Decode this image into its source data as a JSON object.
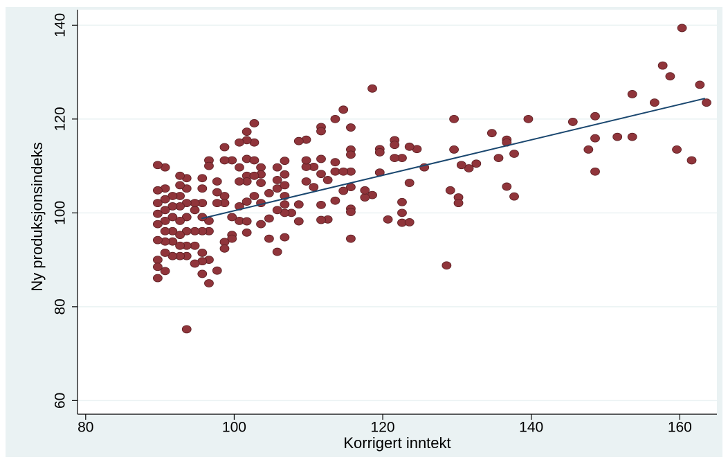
{
  "chart_data": {
    "type": "scatter",
    "x_label": "Korrigert inntekt",
    "y_label": "Ny produksjonsindeks",
    "xlim": [
      78.9,
      165
    ],
    "ylim": [
      57.1,
      143.3
    ],
    "xticks": [
      80,
      100,
      120,
      140,
      160
    ],
    "yticks": [
      60,
      80,
      100,
      120,
      140
    ],
    "grid": true,
    "series": [
      {
        "type": "scatter",
        "color": "#90353b",
        "x": [
          160.3,
          157.7,
          158.7,
          162.7,
          163.6,
          153.6,
          156.6,
          148.6,
          145.6,
          139.6,
          151.6,
          153.6,
          148.6,
          147.7,
          159.6,
          161.6,
          148.6,
          134.7,
          136.7,
          136.7,
          137.7,
          135.6,
          132.6,
          131.6,
          130.6,
          129.6,
          129.6,
          125.6,
          136.7,
          137.7,
          129.1,
          130.2,
          130.2,
          128.6,
          124.6,
          123.6,
          121.6,
          121.6,
          122.6,
          121.6,
          119.6,
          119.6,
          119.6,
          123.6,
          118.6,
          122.6,
          122.6,
          122.6,
          123.6,
          120.7,
          118.6,
          117.6,
          117.6,
          115.7,
          115.7,
          115.7,
          114.7,
          113.6,
          111.7,
          111.7,
          111.7,
          113.6,
          113.6,
          115.7,
          114.7,
          112.6,
          111.7,
          110.7,
          109.7,
          109.7,
          109.7,
          108.7,
          109.7,
          110.7,
          115.7,
          114.7,
          113.6,
          111.7,
          108.7,
          108.7,
          112.6,
          111.7,
          115.7,
          115.7,
          115.7,
          107.7,
          106.8,
          106.8,
          105.8,
          106.8,
          105.8,
          106.8,
          105.8,
          106.8,
          105.8,
          106.8,
          104.7,
          104.7,
          104.7,
          106.8,
          105.8,
          103.6,
          103.6,
          103.6,
          103.6,
          103.6,
          102.7,
          102.7,
          101.7,
          101.7,
          101.7,
          101.7,
          102.7,
          101.7,
          102.7,
          101.7,
          100.7,
          100.7,
          100.7,
          99.7,
          98.7,
          98.7,
          100.7,
          101.7,
          99.7,
          99.7,
          99.7,
          98.7,
          98.7,
          101.7,
          98.7,
          98.7,
          97.7,
          97.7,
          97.7,
          97.7,
          96.6,
          96.6,
          96.6,
          96.6,
          96.6,
          96.6,
          95.7,
          95.7,
          95.7,
          95.7,
          95.7,
          95.7,
          95.7,
          95.7,
          94.7,
          94.7,
          94.7,
          94.7,
          94.7,
          93.6,
          93.6,
          93.6,
          93.6,
          93.6,
          93.6,
          93.6,
          93.6,
          92.7,
          92.7,
          92.7,
          92.7,
          92.7,
          92.7,
          92.7,
          92.7,
          91.7,
          91.7,
          91.7,
          91.7,
          91.7,
          91.7,
          90.7,
          90.7,
          90.7,
          90.7,
          90.7,
          90.7,
          90.7,
          90.7,
          90.7,
          89.7,
          89.7,
          89.7,
          89.7,
          89.7,
          89.7,
          89.7,
          89.7,
          89.7,
          100.7,
          102.7
        ],
        "values": [
          139.4,
          131.4,
          129.1,
          127.3,
          123.5,
          125.3,
          123.5,
          120.6,
          119.4,
          120.0,
          116.2,
          116.2,
          115.9,
          113.5,
          113.5,
          111.2,
          108.8,
          117.0,
          115.6,
          115.0,
          112.6,
          111.7,
          110.5,
          109.5,
          110.2,
          120.0,
          113.5,
          109.7,
          105.6,
          103.5,
          104.8,
          103.3,
          102.1,
          88.8,
          113.6,
          114.1,
          115.5,
          114.5,
          111.7,
          111.7,
          113.6,
          112.9,
          108.6,
          106.4,
          126.5,
          102.3,
          100,
          97.9,
          98.0,
          98.6,
          103.8,
          103.3,
          104.8,
          113.5,
          112.4,
          118.2,
          122.0,
          120.0,
          118.3,
          117.4,
          111.5,
          110.8,
          108.8,
          108.8,
          108.8,
          107.0,
          108.3,
          109.8,
          109.8,
          111.2,
          115.6,
          115.3,
          106.7,
          105.5,
          105.5,
          104.7,
          102.6,
          101.7,
          101.8,
          98.2,
          98.6,
          98.5,
          100.9,
          100.2,
          94.5,
          100,
          100,
          101.8,
          100.6,
          103.6,
          105.2,
          105.9,
          107.0,
          108.2,
          109.7,
          111.1,
          104.2,
          98.8,
          94.5,
          94.8,
          91.7,
          109.7,
          108.2,
          106.4,
          102.1,
          97.6,
          119.1,
          115.0,
          117.3,
          115.5,
          111.5,
          107.9,
          107.9,
          106.7,
          103.6,
          102.4,
          101.4,
          106.7,
          115.0,
          111.2,
          111.2,
          114.0,
          98.3,
          98.2,
          99.1,
          95.3,
          94.5,
          93.8,
          92.4,
          95.8,
          103.6,
          102.1,
          104.4,
          102.1,
          106.7,
          87.7,
          111.2,
          110.0,
          98.3,
          96.1,
          90.0,
          85.0,
          87.0,
          89.7,
          91.5,
          107.4,
          105.2,
          102.1,
          99.1,
          96.1,
          89.2,
          93.0,
          96.1,
          100.6,
          102.1,
          75.2,
          107.4,
          105.2,
          102.1,
          99.1,
          96.1,
          93.0,
          90.8,
          107.9,
          105.9,
          103.6,
          101.4,
          98.3,
          95.3,
          93.0,
          90.8,
          103.6,
          101.4,
          99.1,
          96.1,
          93.9,
          90.8,
          109.7,
          105.2,
          102.9,
          100.6,
          98.3,
          96.1,
          93.9,
          91.5,
          87.6,
          110.2,
          104.8,
          102.1,
          99.8,
          97.6,
          94.2,
          90.0,
          88.5,
          86.1,
          109.7,
          111.2
        ]
      },
      {
        "type": "line",
        "color": "#1a476f",
        "x": [
          95.6,
          163.4
        ],
        "values": [
          98.8,
          124.4
        ]
      }
    ]
  }
}
